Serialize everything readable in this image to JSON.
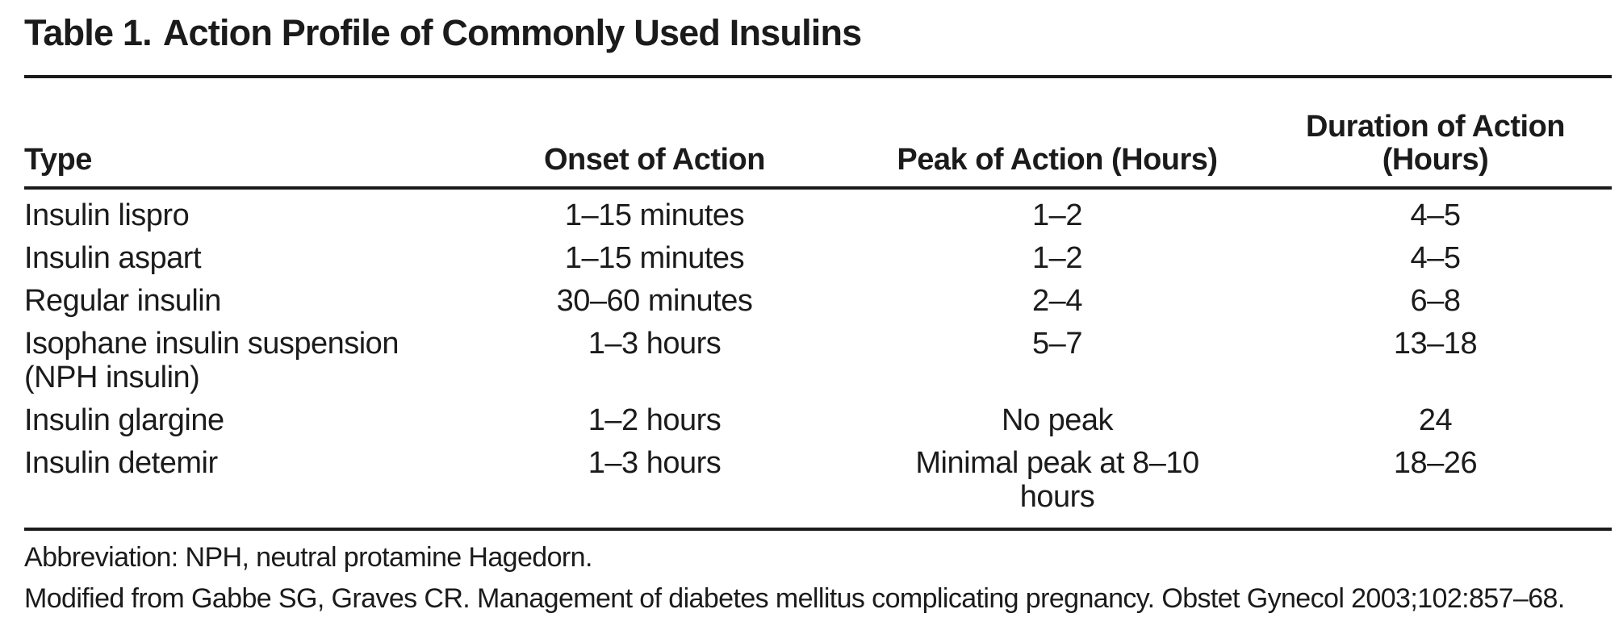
{
  "title": {
    "label": "Table 1.",
    "text": "Action Profile of Commonly Used Insulins"
  },
  "table": {
    "columns": [
      "Type",
      "Onset of Action",
      "Peak of Action (Hours)",
      "Duration of Action\n(Hours)"
    ],
    "rows": [
      {
        "type": "Insulin lispro",
        "onset": "1–15 minutes",
        "peak": "1–2",
        "duration": "4–5"
      },
      {
        "type": "Insulin aspart",
        "onset": "1–15 minutes",
        "peak": "1–2",
        "duration": "4–5"
      },
      {
        "type": "Regular insulin",
        "onset": "30–60 minutes",
        "peak": "2–4",
        "duration": "6–8"
      },
      {
        "type": "Isophane insulin suspension\n(NPH insulin)",
        "onset": "1–3 hours",
        "peak": "5–7",
        "duration": "13–18"
      },
      {
        "type": "Insulin glargine",
        "onset": "1–2 hours",
        "peak": "No peak",
        "duration": "24"
      },
      {
        "type": "Insulin detemir",
        "onset": "1–3 hours",
        "peak": "Minimal peak at 8–10\nhours",
        "duration": "18–26"
      }
    ]
  },
  "footnotes": {
    "abbreviation": "Abbreviation: NPH, neutral protamine Hagedorn.",
    "source": "Modified from Gabbe SG, Graves CR. Management of diabetes mellitus complicating pregnancy. Obstet Gynecol 2003;102:857–68."
  },
  "colors": {
    "text": "#1b1b1b",
    "background": "#ffffff",
    "rule": "#1b1b1b"
  }
}
